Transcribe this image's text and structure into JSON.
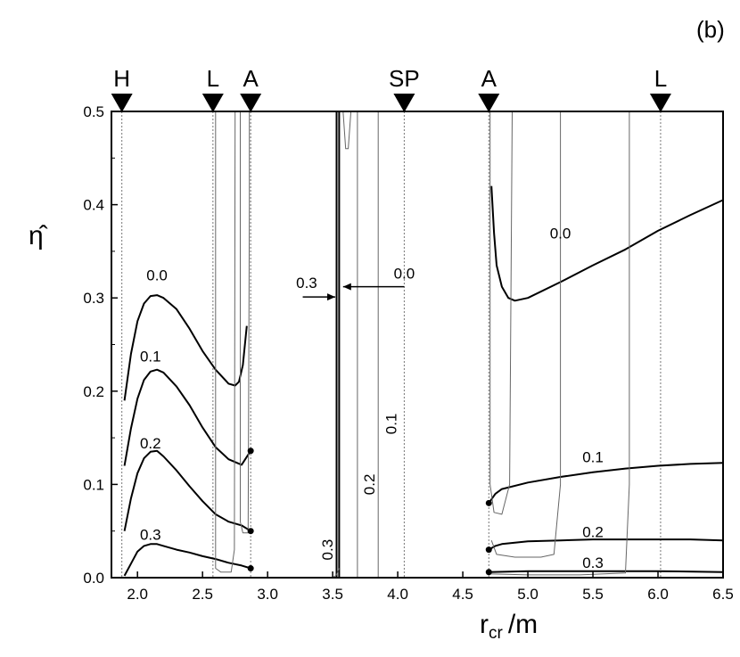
{
  "chart_data": {
    "type": "line",
    "panel_label": "(b)",
    "xlabel": "r",
    "xlabel_subscript": "cr",
    "xlabel_unit": "/m",
    "ylabel": "η̂",
    "xlim": [
      1.8,
      6.5
    ],
    "ylim": [
      0.0,
      0.5
    ],
    "xticks": [
      {
        "value": 2.0,
        "label": "2.0"
      },
      {
        "value": 2.5,
        "label": "2.5"
      },
      {
        "value": 3.0,
        "label": "3.0"
      },
      {
        "value": 3.5,
        "label": "3.5"
      },
      {
        "value": 4.0,
        "label": "4.0"
      },
      {
        "value": 4.5,
        "label": "4.5"
      },
      {
        "value": 5.0,
        "label": "5.0"
      },
      {
        "value": 5.5,
        "label": "5.5"
      },
      {
        "value": 6.0,
        "label": "6.0"
      },
      {
        "value": 6.5,
        "label": "6.5"
      }
    ],
    "yticks": [
      {
        "value": 0.0,
        "label": "0.0"
      },
      {
        "value": 0.1,
        "label": "0.1"
      },
      {
        "value": 0.2,
        "label": "0.2"
      },
      {
        "value": 0.3,
        "label": "0.3"
      },
      {
        "value": 0.4,
        "label": "0.4"
      },
      {
        "value": 0.5,
        "label": "0.5"
      }
    ],
    "markers": [
      {
        "label": "H",
        "x": 1.88
      },
      {
        "label": "L",
        "x": 2.58
      },
      {
        "label": "A",
        "x": 2.87
      },
      {
        "label": "SP",
        "x": 4.05
      },
      {
        "label": "A",
        "x": 4.7
      },
      {
        "label": "L",
        "x": 6.02
      }
    ],
    "reference_lines": [
      1.88,
      2.58,
      2.87,
      4.05,
      4.7,
      6.02
    ],
    "series": [
      {
        "group": "left-0.0",
        "style": "thick",
        "points": [
          [
            1.9,
            0.19
          ],
          [
            1.95,
            0.24
          ],
          [
            2.0,
            0.275
          ],
          [
            2.05,
            0.294
          ],
          [
            2.1,
            0.302
          ],
          [
            2.15,
            0.303
          ],
          [
            2.2,
            0.3
          ],
          [
            2.3,
            0.288
          ],
          [
            2.4,
            0.267
          ],
          [
            2.5,
            0.243
          ],
          [
            2.6,
            0.223
          ],
          [
            2.7,
            0.208
          ],
          [
            2.75,
            0.206
          ],
          [
            2.78,
            0.21
          ],
          [
            2.81,
            0.228
          ],
          [
            2.84,
            0.27
          ]
        ]
      },
      {
        "group": "left-0.1",
        "style": "thick",
        "points": [
          [
            1.9,
            0.12
          ],
          [
            1.95,
            0.16
          ],
          [
            2.0,
            0.192
          ],
          [
            2.05,
            0.212
          ],
          [
            2.1,
            0.221
          ],
          [
            2.15,
            0.223
          ],
          [
            2.2,
            0.22
          ],
          [
            2.3,
            0.205
          ],
          [
            2.4,
            0.185
          ],
          [
            2.5,
            0.161
          ],
          [
            2.6,
            0.14
          ],
          [
            2.7,
            0.127
          ],
          [
            2.8,
            0.121
          ],
          [
            2.87,
            0.136
          ]
        ]
      },
      {
        "group": "left-0.2",
        "style": "thick",
        "points": [
          [
            1.9,
            0.05
          ],
          [
            1.95,
            0.085
          ],
          [
            2.0,
            0.112
          ],
          [
            2.05,
            0.128
          ],
          [
            2.1,
            0.135
          ],
          [
            2.15,
            0.136
          ],
          [
            2.2,
            0.13
          ],
          [
            2.3,
            0.115
          ],
          [
            2.4,
            0.098
          ],
          [
            2.5,
            0.082
          ],
          [
            2.6,
            0.068
          ],
          [
            2.7,
            0.06
          ],
          [
            2.8,
            0.056
          ],
          [
            2.87,
            0.05
          ]
        ]
      },
      {
        "group": "left-0.3",
        "style": "thick",
        "points": [
          [
            1.9,
            0.002
          ],
          [
            1.95,
            0.015
          ],
          [
            2.0,
            0.028
          ],
          [
            2.05,
            0.034
          ],
          [
            2.1,
            0.036
          ],
          [
            2.15,
            0.036
          ],
          [
            2.2,
            0.034
          ],
          [
            2.3,
            0.03
          ],
          [
            2.4,
            0.027
          ],
          [
            2.5,
            0.023
          ],
          [
            2.6,
            0.02
          ],
          [
            2.7,
            0.016
          ],
          [
            2.8,
            0.013
          ],
          [
            2.87,
            0.01
          ]
        ]
      },
      {
        "group": "right-0.0",
        "style": "thick",
        "points": [
          [
            4.72,
            0.42
          ],
          [
            4.74,
            0.37
          ],
          [
            4.76,
            0.335
          ],
          [
            4.8,
            0.312
          ],
          [
            4.85,
            0.3
          ],
          [
            4.9,
            0.297
          ],
          [
            5.0,
            0.3
          ],
          [
            5.25,
            0.317
          ],
          [
            5.5,
            0.335
          ],
          [
            5.75,
            0.352
          ],
          [
            6.0,
            0.372
          ],
          [
            6.25,
            0.389
          ],
          [
            6.5,
            0.405
          ]
        ]
      },
      {
        "group": "right-0.1",
        "style": "thick",
        "points": [
          [
            4.7,
            0.08
          ],
          [
            4.75,
            0.09
          ],
          [
            4.8,
            0.095
          ],
          [
            5.0,
            0.102
          ],
          [
            5.25,
            0.108
          ],
          [
            5.5,
            0.113
          ],
          [
            5.75,
            0.117
          ],
          [
            6.0,
            0.12
          ],
          [
            6.25,
            0.122
          ],
          [
            6.5,
            0.123
          ]
        ]
      },
      {
        "group": "right-0.2",
        "style": "thick",
        "points": [
          [
            4.7,
            0.03
          ],
          [
            4.75,
            0.034
          ],
          [
            4.8,
            0.036
          ],
          [
            5.0,
            0.039
          ],
          [
            5.25,
            0.04
          ],
          [
            5.5,
            0.041
          ],
          [
            5.75,
            0.041
          ],
          [
            6.0,
            0.041
          ],
          [
            6.25,
            0.041
          ],
          [
            6.5,
            0.04
          ]
        ]
      },
      {
        "group": "right-0.3",
        "style": "thick",
        "points": [
          [
            4.7,
            0.006
          ],
          [
            5.0,
            0.007
          ],
          [
            5.5,
            0.007
          ],
          [
            6.0,
            0.007
          ],
          [
            6.5,
            0.006
          ]
        ]
      },
      {
        "group": "center-0.0",
        "style": "thick",
        "points": [
          [
            3.55,
            0.0
          ],
          [
            3.55,
            0.5
          ]
        ]
      },
      {
        "group": "center-0.3",
        "style": "thick",
        "points": [
          [
            3.53,
            0.0
          ],
          [
            3.53,
            0.5
          ]
        ]
      },
      {
        "group": "thin-left-a",
        "style": "thin",
        "points": [
          [
            2.6,
            0.5
          ],
          [
            2.6,
            0.01
          ],
          [
            2.64,
            0.006
          ],
          [
            2.72,
            0.006
          ],
          [
            2.745,
            0.03
          ],
          [
            2.75,
            0.5
          ]
        ]
      },
      {
        "group": "thin-left-b",
        "style": "thin",
        "points": [
          [
            2.79,
            0.5
          ],
          [
            2.79,
            0.06
          ],
          [
            2.81,
            0.048
          ],
          [
            2.85,
            0.048
          ],
          [
            2.86,
            0.4
          ],
          [
            2.86,
            0.5
          ]
        ]
      },
      {
        "group": "thin-center-0.1",
        "style": "thin",
        "points": [
          [
            3.85,
            0.0
          ],
          [
            3.85,
            0.5
          ]
        ]
      },
      {
        "group": "thin-center-0.2",
        "style": "thin",
        "points": [
          [
            3.58,
            0.5
          ],
          [
            3.6,
            0.46
          ],
          [
            3.62,
            0.46
          ],
          [
            3.64,
            0.5
          ]
        ]
      },
      {
        "group": "thin-center-0.2b",
        "style": "thin",
        "points": [
          [
            3.69,
            0.0
          ],
          [
            3.69,
            0.5
          ]
        ]
      },
      {
        "group": "thin-center-0.3",
        "style": "thin",
        "points": [
          [
            3.5,
            0.0
          ],
          [
            3.53,
            0.003
          ],
          [
            3.55,
            0.01
          ]
        ]
      },
      {
        "group": "thin-right-0.1",
        "style": "thin",
        "points": [
          [
            4.71,
            0.5
          ],
          [
            4.71,
            0.1
          ],
          [
            4.74,
            0.07
          ],
          [
            4.8,
            0.068
          ],
          [
            4.86,
            0.1
          ],
          [
            4.88,
            0.5
          ]
        ]
      },
      {
        "group": "thin-right-0.2",
        "style": "thin",
        "points": [
          [
            4.72,
            0.04
          ],
          [
            4.76,
            0.025
          ],
          [
            4.9,
            0.022
          ],
          [
            5.1,
            0.022
          ],
          [
            5.2,
            0.025
          ],
          [
            5.25,
            0.1
          ],
          [
            5.25,
            0.5
          ]
        ]
      },
      {
        "group": "thin-right-0.3",
        "style": "thin",
        "points": [
          [
            4.7,
            0.004
          ],
          [
            5.0,
            0.003
          ],
          [
            5.4,
            0.003
          ],
          [
            5.75,
            0.005
          ],
          [
            5.78,
            0.1
          ],
          [
            5.78,
            0.5
          ]
        ]
      }
    ],
    "endpoint_dots": [
      [
        2.87,
        0.136
      ],
      [
        2.87,
        0.05
      ],
      [
        2.87,
        0.01
      ],
      [
        4.7,
        0.08
      ],
      [
        4.7,
        0.03
      ],
      [
        4.7,
        0.006
      ]
    ],
    "curve_labels": [
      {
        "text": "0.0",
        "x": 2.15,
        "y": 0.323
      },
      {
        "text": "0.1",
        "x": 2.1,
        "y": 0.236
      },
      {
        "text": "0.2",
        "x": 2.1,
        "y": 0.143
      },
      {
        "text": "0.3",
        "x": 2.1,
        "y": 0.045
      },
      {
        "text": "0.0",
        "x": 5.25,
        "y": 0.368
      },
      {
        "text": "0.1",
        "x": 5.5,
        "y": 0.128
      },
      {
        "text": "0.2",
        "x": 5.5,
        "y": 0.048
      },
      {
        "text": "0.3",
        "x": 5.5,
        "y": 0.015
      },
      {
        "text": "0.3",
        "x": 3.3,
        "y": 0.315
      },
      {
        "text": "0.0",
        "x": 4.05,
        "y": 0.325
      },
      {
        "text": "0.1",
        "x": 3.96,
        "y": 0.165,
        "rotate": -90
      },
      {
        "text": "0.2",
        "x": 3.79,
        "y": 0.1,
        "rotate": -90
      },
      {
        "text": "0.3",
        "x": 3.47,
        "y": 0.03,
        "rotate": -90
      }
    ],
    "arrows": [
      {
        "from": [
          3.27,
          0.301
        ],
        "to": [
          3.52,
          0.301
        ]
      },
      {
        "from": [
          4.05,
          0.312
        ],
        "to": [
          3.58,
          0.312
        ]
      }
    ]
  }
}
